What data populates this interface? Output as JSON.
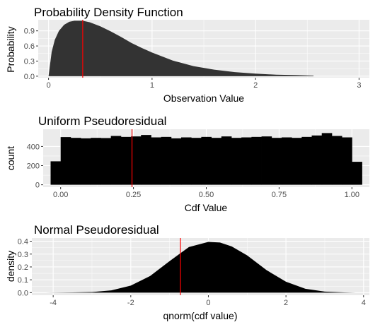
{
  "colors": {
    "panel_background": "#ebebeb",
    "grid": "#ffffff",
    "pdf_fill": "#333333",
    "bar_fill": "#000000",
    "marker_line": "#ff0000"
  },
  "chart_data": [
    {
      "id": "pdf",
      "type": "area",
      "title": "Probability Density Function",
      "xlabel": "Observation Value",
      "ylabel": "Probability",
      "xlim": [
        -0.1,
        3.1
      ],
      "ylim": [
        -0.03,
        1.12
      ],
      "x_ticks": [
        0,
        1,
        2,
        3
      ],
      "x_tick_labels": [
        "0",
        "1",
        "2",
        "3"
      ],
      "y_ticks": [
        0.0,
        0.3,
        0.6,
        0.9
      ],
      "y_tick_labels": [
        "0.0",
        "0.3",
        "0.6",
        "0.9"
      ],
      "x": [
        0.0,
        0.03,
        0.06,
        0.1,
        0.15,
        0.2,
        0.25,
        0.33,
        0.4,
        0.5,
        0.6,
        0.7,
        0.8,
        0.9,
        1.0,
        1.2,
        1.4,
        1.6,
        1.8,
        2.0,
        2.2,
        2.4,
        2.56
      ],
      "y": [
        0.0,
        0.48,
        0.72,
        0.9,
        1.02,
        1.08,
        1.1,
        1.1,
        1.07,
        0.99,
        0.89,
        0.78,
        0.66,
        0.56,
        0.47,
        0.31,
        0.2,
        0.13,
        0.08,
        0.05,
        0.03,
        0.02,
        0.01
      ],
      "marker_x": 0.33
    },
    {
      "id": "uniform",
      "type": "bar",
      "title": "Uniform Pseudoresidual",
      "xlabel": "Cdf Value",
      "ylabel": "count",
      "xlim": [
        -0.06,
        1.06
      ],
      "ylim": [
        -25,
        580
      ],
      "x_ticks": [
        0.0,
        0.25,
        0.5,
        0.75,
        1.0
      ],
      "x_tick_labels": [
        "0.00",
        "0.25",
        "0.50",
        "0.75",
        "1.00"
      ],
      "y_ticks": [
        0,
        200,
        400
      ],
      "y_tick_labels": [
        "0",
        "200",
        "400"
      ],
      "bin_width": 0.0345,
      "bin_centers": [
        -0.0172,
        0.0172,
        0.0517,
        0.0862,
        0.1207,
        0.1552,
        0.1897,
        0.2241,
        0.2586,
        0.2931,
        0.3276,
        0.3621,
        0.3966,
        0.431,
        0.4655,
        0.5,
        0.5345,
        0.569,
        0.6034,
        0.6379,
        0.6724,
        0.7069,
        0.7414,
        0.7759,
        0.8103,
        0.8448,
        0.8793,
        0.9138,
        0.9483,
        0.9828,
        1.0172
      ],
      "values": [
        245,
        498,
        490,
        485,
        490,
        488,
        510,
        500,
        505,
        520,
        495,
        500,
        485,
        495,
        490,
        500,
        490,
        505,
        490,
        495,
        500,
        505,
        490,
        495,
        490,
        500,
        515,
        540,
        510,
        495,
        240
      ],
      "marker_x": 0.245
    },
    {
      "id": "normal",
      "type": "area",
      "title": "Normal Pseudoresidual",
      "xlabel": "qnorm(cdf value)",
      "ylabel": "density",
      "xlim": [
        -4.55,
        4.15
      ],
      "ylim": [
        -0.02,
        0.425
      ],
      "x_ticks": [
        -4,
        -2,
        0,
        2,
        4
      ],
      "x_tick_labels": [
        "-4",
        "-2",
        "0",
        "2",
        "4"
      ],
      "y_ticks": [
        0.0,
        0.1,
        0.2,
        0.3,
        0.4
      ],
      "y_tick_labels": [
        "0.0",
        "0.1",
        "0.2",
        "0.3",
        "0.4"
      ],
      "x": [
        -4.2,
        -3.5,
        -3.0,
        -2.5,
        -2.0,
        -1.5,
        -1.0,
        -0.5,
        0.0,
        0.3,
        0.6,
        1.0,
        1.5,
        2.0,
        2.5,
        3.0,
        3.5,
        3.8
      ],
      "y": [
        0.0,
        0.002,
        0.005,
        0.018,
        0.055,
        0.13,
        0.245,
        0.355,
        0.395,
        0.39,
        0.36,
        0.29,
        0.175,
        0.085,
        0.03,
        0.008,
        0.002,
        0.0
      ],
      "marker_x": -0.72
    }
  ]
}
